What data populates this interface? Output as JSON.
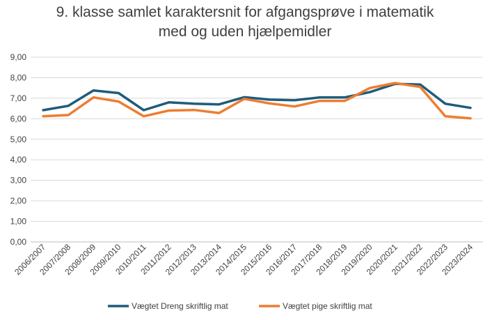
{
  "chart_data": {
    "type": "line",
    "title_lines": [
      "9. klasse samlet karaktersnit for afgangsprøve i matematik",
      "med og uden hjælpemidler"
    ],
    "categories": [
      "2006/2007",
      "2007/2008",
      "2008/2009",
      "2009/2010",
      "2010/2011",
      "2011/2012",
      "2012/2013",
      "2013/2014",
      "2014/2015",
      "2015/2016",
      "2016/2017",
      "2017/2018",
      "2018/2019",
      "2019/2020",
      "2020/2021",
      "2021/2022",
      "2022/2023",
      "2023/2024"
    ],
    "ylim": [
      0,
      9
    ],
    "yticks": [
      "0,00",
      "1,00",
      "2,00",
      "3,00",
      "4,00",
      "5,00",
      "6,00",
      "7,00",
      "8,00",
      "9,00"
    ],
    "grid": true,
    "legend_position": "bottom",
    "series": [
      {
        "name": "Vægtet Dreng skriftlig mat",
        "color": "#1F5C7A",
        "values": [
          6.42,
          6.63,
          7.38,
          7.25,
          6.42,
          6.8,
          6.73,
          6.7,
          7.05,
          6.93,
          6.9,
          7.04,
          7.04,
          7.3,
          7.7,
          7.67,
          6.73,
          6.53
        ]
      },
      {
        "name": "Vægtet pige skriftlig mat",
        "color": "#ED7D31",
        "values": [
          6.12,
          6.18,
          7.04,
          6.84,
          6.12,
          6.4,
          6.43,
          6.28,
          6.97,
          6.75,
          6.6,
          6.87,
          6.87,
          7.5,
          7.74,
          7.55,
          6.12,
          6.02
        ]
      }
    ]
  }
}
